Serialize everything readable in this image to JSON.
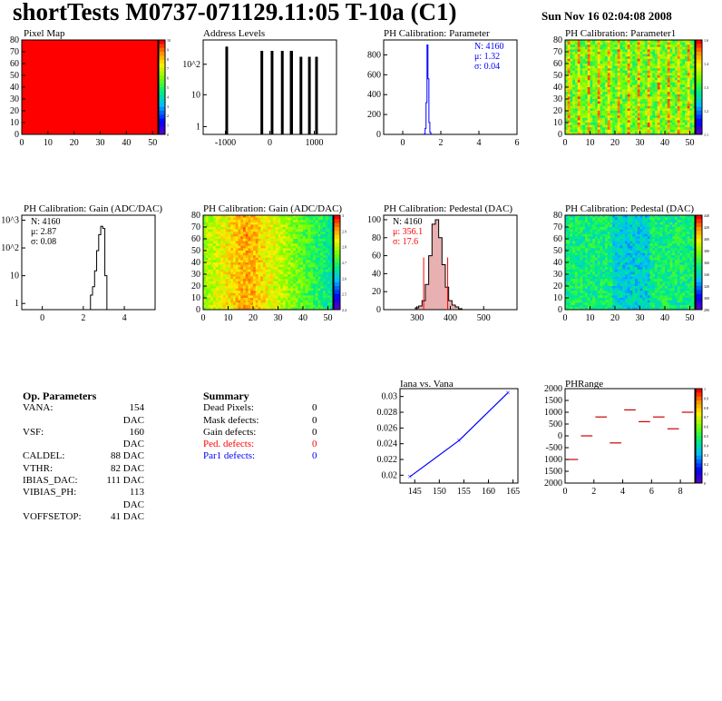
{
  "header": {
    "title": "shortTests M0737-071129.11:05 T-10a (C1)",
    "date": "Sun Nov 16 02:04:08 2008"
  },
  "colors": {
    "hist_line": "#000000",
    "pedestal_fill": "#8b0000",
    "fit_line": "#0000ff",
    "stats_blue": "#0000ff",
    "stats_red": "#ff0000",
    "phrange_marks": "#cc0000"
  },
  "plots": {
    "pixel_map": {
      "title": "Pixel Map",
      "x_ticks": [
        "0",
        "10",
        "20",
        "30",
        "40",
        "50"
      ],
      "y_ticks": [
        "0",
        "10",
        "20",
        "30",
        "40",
        "50",
        "60",
        "70",
        "80"
      ],
      "z_ticks": [
        "10",
        "9",
        "8",
        "7",
        "6",
        "5",
        "4",
        "3",
        "2",
        "1",
        "0"
      ],
      "uniform_value": 10
    },
    "address_levels": {
      "title": "Address Levels",
      "x_ticks": [
        "-1000",
        "0",
        "1000"
      ],
      "y_ticks": [
        "1",
        "10",
        "10^2"
      ]
    },
    "ph_param": {
      "title": "PH Calibration: Parameter",
      "x_ticks": [
        "0",
        "2",
        "4",
        "6"
      ],
      "y_ticks": [
        "0",
        "200",
        "400",
        "600",
        "800"
      ],
      "stats": {
        "n": "N: 4160",
        "mu": "μ: 1.32",
        "sigma": "σ: 0.04"
      }
    },
    "ph_param1": {
      "title": "PH Calibration: Parameter1",
      "x_ticks": [
        "0",
        "10",
        "20",
        "30",
        "40",
        "50"
      ],
      "y_ticks": [
        "0",
        "10",
        "20",
        "30",
        "40",
        "50",
        "60",
        "70",
        "80"
      ],
      "z_ticks": [
        "1.6",
        "1.4",
        "1.3",
        "1.2",
        "1.1"
      ]
    },
    "gain_hist": {
      "title": "PH Calibration: Gain (ADC/DAC)",
      "x_ticks": [
        "0",
        "2",
        "4"
      ],
      "y_ticks": [
        "1",
        "10",
        "10^2",
        "10^3"
      ],
      "stats": {
        "n": "N: 4160",
        "mu": "μ: 2.87",
        "sigma": "σ: 0.08"
      }
    },
    "gain_map": {
      "title": "PH Calibration: Gain (ADC/DAC)",
      "x_ticks": [
        "0",
        "10",
        "20",
        "30",
        "40",
        "50"
      ],
      "y_ticks": [
        "0",
        "10",
        "20",
        "30",
        "40",
        "50",
        "60",
        "70",
        "80"
      ],
      "z_ticks": [
        "3",
        "2.9",
        "2.8",
        "2.7",
        "2.6",
        "2.5",
        "2.4"
      ]
    },
    "pedestal_hist": {
      "title": "PH Calibration: Pedestal (DAC)",
      "x_ticks": [
        "300",
        "400",
        "500"
      ],
      "y_ticks": [
        "0",
        "20",
        "40",
        "60",
        "80",
        "100"
      ],
      "stats": {
        "n": "N: 4160",
        "mu": "μ: 356.1",
        "sigma": "σ: 17.6"
      }
    },
    "pedestal_map": {
      "title": "PH Calibration: Pedestal (DAC)",
      "x_ticks": [
        "0",
        "10",
        "20",
        "30",
        "40",
        "50"
      ],
      "y_ticks": [
        "0",
        "10",
        "20",
        "30",
        "40",
        "50",
        "60",
        "70",
        "80"
      ],
      "z_ticks": [
        "440",
        "420",
        "400",
        "380",
        "360",
        "340",
        "320",
        "300",
        "280"
      ]
    },
    "iana_vana": {
      "title": "Iana vs. Vana",
      "x_ticks": [
        "145",
        "150",
        "155",
        "160",
        "165"
      ],
      "y_ticks": [
        "0.02",
        "0.022",
        "0.024",
        "0.026",
        "0.028",
        "0.03"
      ]
    },
    "phrange": {
      "title": "PHRange",
      "x_ticks": [
        "0",
        "2",
        "4",
        "6",
        "8"
      ],
      "y_ticks": [
        "2000",
        "1500",
        "1000",
        "500",
        "0",
        "-500",
        "1000",
        "1500",
        "2000"
      ],
      "z_ticks": [
        "1",
        "0.9",
        "0.8",
        "0.7",
        "0.6",
        "0.5",
        "0.4",
        "0.3",
        "0.2",
        "0.1",
        "0"
      ]
    }
  },
  "op_parameters": {
    "heading": "Op. Parameters",
    "rows": [
      {
        "name": "VANA:",
        "value": "154 DAC"
      },
      {
        "name": "VSF:",
        "value": "160 DAC"
      },
      {
        "name": "CALDEL:",
        "value": "88 DAC"
      },
      {
        "name": "VTHR:",
        "value": "82 DAC"
      },
      {
        "name": "IBIAS_DAC:",
        "value": "111 DAC"
      },
      {
        "name": "VIBIAS_PH:",
        "value": "113 DAC"
      },
      {
        "name": "VOFFSETOP:",
        "value": "41 DAC"
      }
    ]
  },
  "summary": {
    "heading": "Summary",
    "rows": [
      {
        "name": "Dead Pixels:",
        "value": "0",
        "color": "#000000"
      },
      {
        "name": "Mask defects:",
        "value": "0",
        "color": "#000000"
      },
      {
        "name": "Gain defects:",
        "value": "0",
        "color": "#000000"
      },
      {
        "name": "Ped. defects:",
        "value": "0",
        "color": "#ff0000"
      },
      {
        "name": "Par1 defects:",
        "value": "0",
        "color": "#0000ff"
      }
    ]
  },
  "chart_data": [
    {
      "type": "heatmap",
      "title": "Pixel Map",
      "x_range": [
        0,
        52
      ],
      "y_range": [
        0,
        80
      ],
      "z_range": [
        0,
        10
      ],
      "values": "all pixels = 10"
    },
    {
      "type": "bar",
      "title": "Address Levels",
      "log_y": true,
      "x_range": [
        -1500,
        1500
      ],
      "x": [
        -980,
        -960,
        -190,
        -170,
        40,
        60,
        270,
        290,
        470,
        500,
        690,
        710,
        880,
        900,
        1040,
        1060
      ],
      "values": [
        400,
        400,
        300,
        300,
        300,
        300,
        300,
        300,
        300,
        300,
        200,
        200,
        200,
        200,
        200,
        200
      ]
    },
    {
      "type": "bar",
      "title": "PH Calibration: Parameter",
      "x_range": [
        -1,
        6
      ],
      "ylim": [
        0,
        950
      ],
      "x": [
        1.15,
        1.2,
        1.25,
        1.3,
        1.35,
        1.4,
        1.45,
        1.5
      ],
      "values": [
        5,
        60,
        320,
        900,
        560,
        120,
        20,
        3
      ]
    },
    {
      "type": "heatmap",
      "title": "PH Calibration: Parameter1",
      "x_range": [
        0,
        52
      ],
      "y_range": [
        0,
        80
      ],
      "z_range": [
        1.1,
        1.6
      ]
    },
    {
      "type": "bar",
      "title": "PH Calibration: Gain (ADC/DAC)",
      "log_y": true,
      "x_range": [
        -1,
        5.5
      ],
      "x": [
        2.4,
        2.5,
        2.6,
        2.7,
        2.8,
        2.9,
        3.0,
        3.1
      ],
      "values": [
        2,
        4,
        15,
        80,
        300,
        600,
        500,
        10
      ]
    },
    {
      "type": "heatmap",
      "title": "PH Calibration: Gain (ADC/DAC)",
      "x_range": [
        0,
        52
      ],
      "y_range": [
        0,
        80
      ],
      "z_range": [
        2.4,
        3.0
      ]
    },
    {
      "type": "bar",
      "title": "PH Calibration: Pedestal (DAC)",
      "x_range": [
        200,
        600
      ],
      "ylim": [
        0,
        105
      ],
      "x": [
        300,
        310,
        320,
        330,
        340,
        350,
        360,
        370,
        380,
        390,
        400,
        410,
        420,
        430
      ],
      "values": [
        2,
        4,
        10,
        28,
        60,
        95,
        100,
        80,
        50,
        25,
        10,
        5,
        3,
        1
      ]
    },
    {
      "type": "heatmap",
      "title": "PH Calibration: Pedestal (DAC)",
      "x_range": [
        0,
        52
      ],
      "y_range": [
        0,
        80
      ],
      "z_range": [
        280,
        440
      ]
    },
    {
      "type": "line",
      "title": "Iana vs. Vana",
      "x": [
        144,
        154,
        164
      ],
      "y": [
        0.0198,
        0.0244,
        0.0305
      ],
      "ylim": [
        0.019,
        0.031
      ]
    },
    {
      "type": "scatter",
      "title": "PHRange",
      "x_range": [
        0,
        9
      ],
      "y_range": [
        -2000,
        2000
      ],
      "x": [
        0.5,
        1.5,
        2.5,
        3.5,
        4.5,
        5.5,
        6.5,
        7.5,
        8.5
      ],
      "values": [
        -1000,
        0,
        800,
        -300,
        1100,
        600,
        800,
        300,
        1000
      ]
    }
  ]
}
